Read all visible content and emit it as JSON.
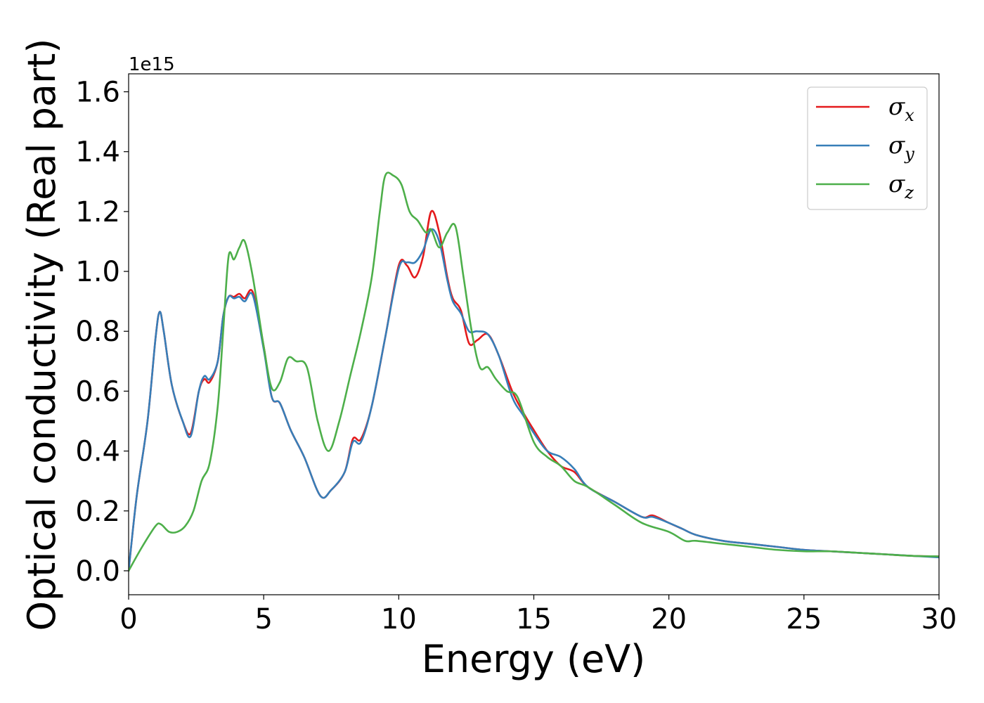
{
  "chart_data": {
    "type": "line",
    "xlabel": "Energy (eV)",
    "ylabel": "Optical conductivity (Real part)",
    "y_offset_text": "1e15",
    "xlim": [
      0,
      30
    ],
    "ylim": [
      -0.08,
      1.66
    ],
    "x_ticks": [
      0,
      5,
      10,
      15,
      20,
      25,
      30
    ],
    "x_tick_labels": [
      "0",
      "5",
      "10",
      "15",
      "20",
      "25",
      "30"
    ],
    "y_ticks": [
      0.0,
      0.2,
      0.4,
      0.6,
      0.8,
      1.0,
      1.2,
      1.4,
      1.6
    ],
    "y_tick_labels": [
      "0.0",
      "0.2",
      "0.4",
      "0.6",
      "0.8",
      "1.0",
      "1.2",
      "1.4",
      "1.6"
    ],
    "grid": false,
    "legend_position": "top-right",
    "series": [
      {
        "name": "σx",
        "label_base": "σ",
        "label_sub": "x",
        "color": "#e41a1c",
        "x": [
          0,
          0.3,
          0.7,
          1.0,
          1.15,
          1.3,
          1.6,
          2.0,
          2.3,
          2.6,
          2.8,
          3.0,
          3.3,
          3.5,
          3.7,
          3.9,
          4.1,
          4.3,
          4.6,
          5.0,
          5.3,
          5.6,
          6.0,
          6.5,
          7.1,
          7.5,
          8.0,
          8.3,
          8.6,
          9.0,
          9.5,
          10.0,
          10.3,
          10.6,
          10.9,
          11.2,
          11.5,
          11.8,
          12.0,
          12.3,
          12.6,
          12.9,
          13.3,
          13.7,
          14.2,
          14.6,
          15.0,
          15.5,
          16.0,
          16.5,
          17.0,
          18.0,
          19.0,
          19.4,
          20.0,
          20.5,
          21.0,
          22.0,
          23.0,
          24.0,
          25.0,
          26.0,
          27.0,
          28.0,
          29.0,
          30.0
        ],
        "y": [
          0.0,
          0.25,
          0.5,
          0.78,
          0.865,
          0.8,
          0.62,
          0.5,
          0.46,
          0.6,
          0.64,
          0.63,
          0.7,
          0.85,
          0.915,
          0.915,
          0.925,
          0.91,
          0.93,
          0.75,
          0.58,
          0.56,
          0.47,
          0.38,
          0.25,
          0.27,
          0.33,
          0.44,
          0.44,
          0.55,
          0.78,
          1.02,
          1.02,
          0.98,
          1.05,
          1.2,
          1.13,
          0.98,
          0.91,
          0.87,
          0.76,
          0.77,
          0.79,
          0.72,
          0.6,
          0.53,
          0.47,
          0.4,
          0.35,
          0.33,
          0.28,
          0.23,
          0.18,
          0.185,
          0.16,
          0.14,
          0.12,
          0.1,
          0.09,
          0.08,
          0.07,
          0.065,
          0.06,
          0.055,
          0.05,
          0.048
        ]
      },
      {
        "name": "σy",
        "label_base": "σ",
        "label_sub": "y",
        "color": "#377eb8",
        "x": [
          0,
          0.3,
          0.7,
          1.0,
          1.15,
          1.3,
          1.6,
          2.0,
          2.3,
          2.6,
          2.8,
          3.0,
          3.3,
          3.5,
          3.7,
          3.9,
          4.1,
          4.3,
          4.6,
          5.0,
          5.3,
          5.6,
          6.0,
          6.5,
          7.1,
          7.5,
          8.0,
          8.3,
          8.6,
          9.0,
          9.5,
          10.0,
          10.3,
          10.6,
          10.9,
          11.2,
          11.5,
          11.8,
          12.0,
          12.3,
          12.6,
          12.9,
          13.3,
          13.7,
          14.2,
          14.6,
          15.0,
          15.5,
          16.0,
          16.5,
          17.0,
          18.0,
          19.0,
          19.4,
          20.0,
          20.5,
          21.0,
          22.0,
          23.0,
          24.0,
          25.0,
          26.0,
          27.0,
          28.0,
          29.0,
          30.0
        ],
        "y": [
          0.0,
          0.25,
          0.5,
          0.78,
          0.865,
          0.8,
          0.62,
          0.5,
          0.45,
          0.6,
          0.65,
          0.64,
          0.7,
          0.85,
          0.915,
          0.91,
          0.915,
          0.9,
          0.92,
          0.74,
          0.58,
          0.56,
          0.47,
          0.38,
          0.25,
          0.27,
          0.33,
          0.43,
          0.43,
          0.55,
          0.78,
          1.01,
          1.03,
          1.03,
          1.07,
          1.14,
          1.1,
          0.97,
          0.9,
          0.86,
          0.8,
          0.8,
          0.79,
          0.72,
          0.58,
          0.52,
          0.46,
          0.4,
          0.38,
          0.34,
          0.28,
          0.23,
          0.18,
          0.18,
          0.16,
          0.14,
          0.12,
          0.1,
          0.09,
          0.08,
          0.07,
          0.065,
          0.06,
          0.055,
          0.05,
          0.045
        ]
      },
      {
        "name": "σz",
        "label_base": "σ",
        "label_sub": "z",
        "color": "#4daf4a",
        "x": [
          0,
          0.5,
          1.0,
          1.2,
          1.5,
          1.8,
          2.1,
          2.4,
          2.7,
          3.0,
          3.3,
          3.5,
          3.7,
          3.9,
          4.1,
          4.3,
          4.6,
          5.0,
          5.3,
          5.6,
          5.9,
          6.2,
          6.6,
          7.0,
          7.4,
          7.8,
          8.2,
          8.6,
          9.0,
          9.3,
          9.5,
          9.8,
          10.1,
          10.4,
          10.7,
          11.0,
          11.2,
          11.5,
          11.8,
          12.1,
          12.4,
          12.7,
          13.0,
          13.3,
          13.6,
          14.0,
          14.4,
          15.0,
          15.5,
          16.0,
          16.5,
          17.0,
          18.0,
          19.0,
          20.0,
          20.6,
          21.0,
          22.0,
          23.0,
          24.0,
          25.0,
          26.0,
          27.0,
          28.0,
          29.0,
          30.0
        ],
        "y": [
          0.0,
          0.08,
          0.15,
          0.155,
          0.13,
          0.13,
          0.15,
          0.2,
          0.3,
          0.36,
          0.55,
          0.8,
          1.05,
          1.04,
          1.08,
          1.1,
          0.98,
          0.75,
          0.61,
          0.63,
          0.71,
          0.7,
          0.68,
          0.5,
          0.4,
          0.5,
          0.65,
          0.8,
          0.98,
          1.2,
          1.32,
          1.32,
          1.29,
          1.2,
          1.17,
          1.13,
          1.14,
          1.08,
          1.13,
          1.15,
          0.98,
          0.8,
          0.68,
          0.68,
          0.64,
          0.6,
          0.58,
          0.43,
          0.38,
          0.35,
          0.3,
          0.28,
          0.22,
          0.16,
          0.13,
          0.1,
          0.1,
          0.09,
          0.08,
          0.07,
          0.065,
          0.065,
          0.06,
          0.055,
          0.05,
          0.048
        ]
      }
    ]
  }
}
